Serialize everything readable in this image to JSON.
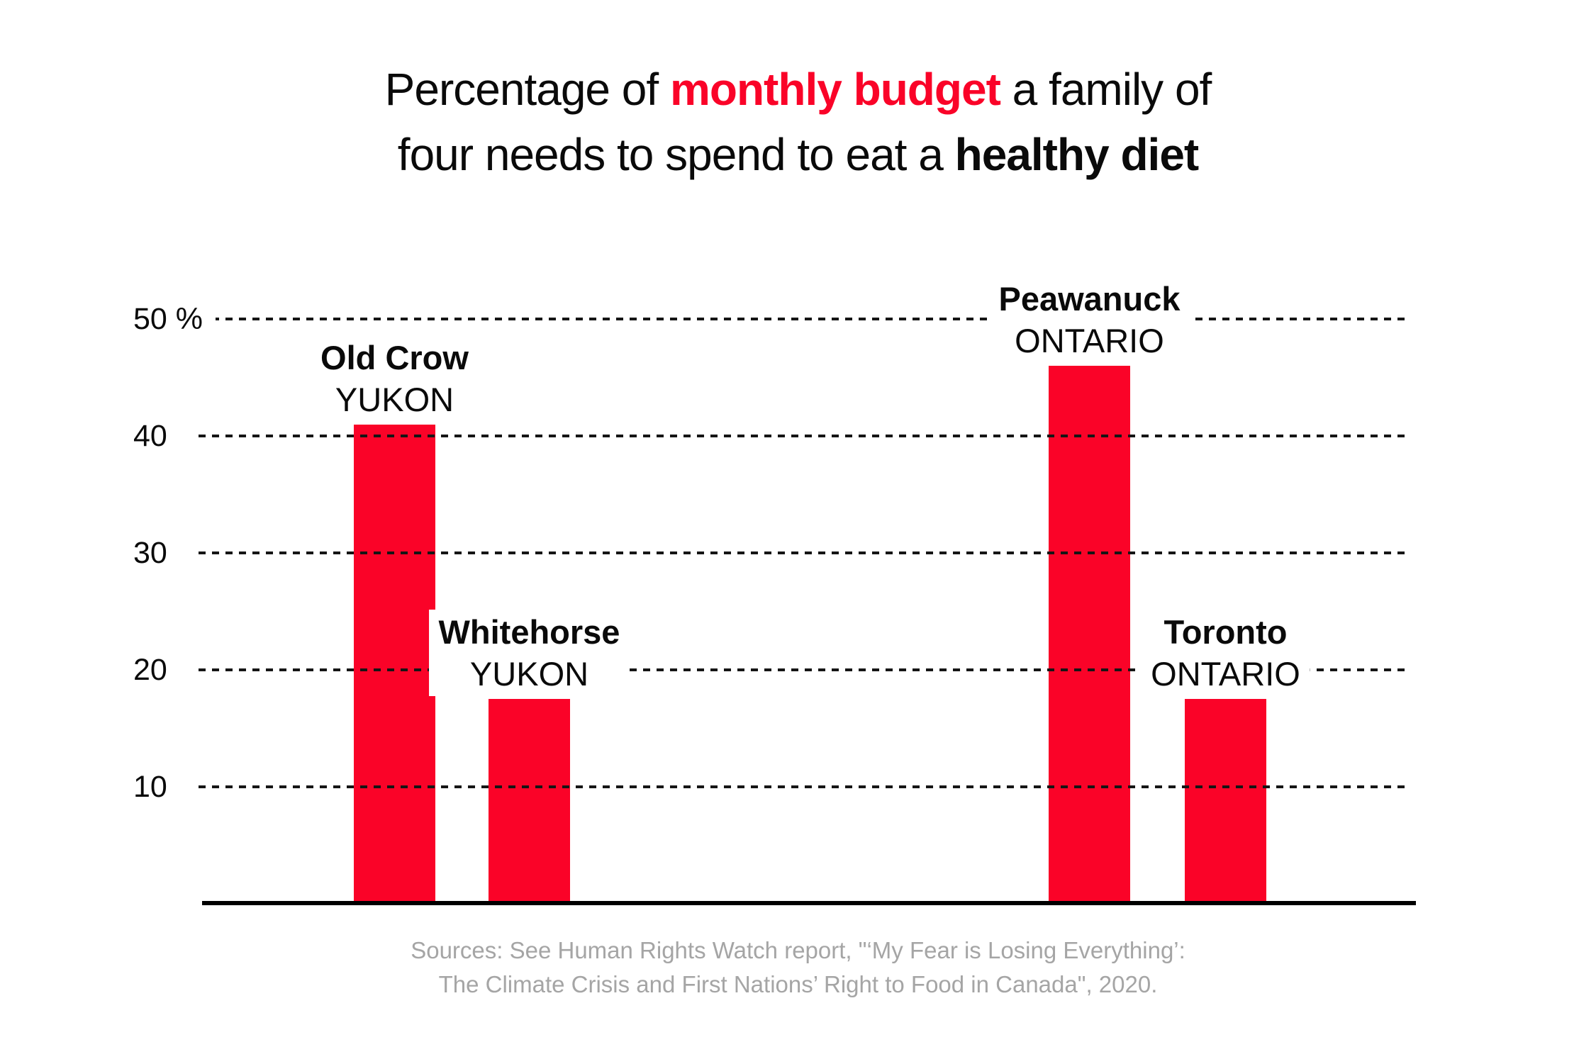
{
  "title": {
    "lines": [
      [
        {
          "text": "Percentage of ",
          "style": "normal"
        },
        {
          "text": "monthly budget",
          "style": "accent"
        },
        {
          "text": " a family of",
          "style": "normal"
        }
      ],
      [
        {
          "text": "four needs to spend to eat a ",
          "style": "normal"
        },
        {
          "text": "healthy diet",
          "style": "bold"
        }
      ]
    ]
  },
  "colors": {
    "accent_red": "#FA0328",
    "bar_red": "#FA0328",
    "text_black": "#0a0a0a",
    "muted_gray": "#a5a5a5"
  },
  "chart_data": {
    "type": "bar",
    "title": "Percentage of monthly budget a family of four needs to spend to eat a healthy diet",
    "categories": [
      "Old Crow",
      "Whitehorse",
      "Peawanuck",
      "Toronto"
    ],
    "category_sublabels": [
      "YUKON",
      "YUKON",
      "ONTARIO",
      "ONTARIO"
    ],
    "values": [
      41,
      17.5,
      46,
      17.5
    ],
    "unit": "%",
    "xlabel": "",
    "ylabel": "",
    "ylim": [
      0,
      53
    ],
    "yticks": [
      {
        "value": 50,
        "label": "50 %"
      },
      {
        "value": 40,
        "label": "40"
      },
      {
        "value": 30,
        "label": "30"
      },
      {
        "value": 20,
        "label": "20"
      },
      {
        "value": 10,
        "label": "10"
      }
    ],
    "grid": "horizontal dashed, drawn over bars, gaps behind labels",
    "legend": "none",
    "bar_color": "#FA0328"
  },
  "source": {
    "lines": [
      "Sources: See Human Rights Watch report, \"‘My Fear is Losing Everything’:",
      "The Climate Crisis and First Nations’ Right to Food in Canada\", 2020."
    ]
  }
}
